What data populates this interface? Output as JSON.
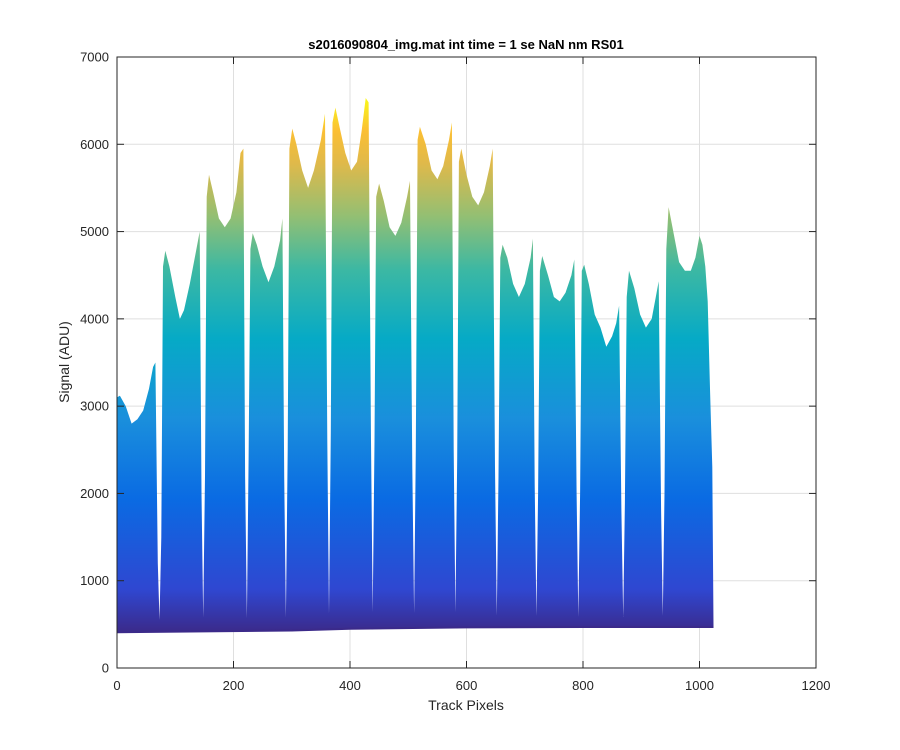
{
  "chart_data": {
    "type": "area",
    "title": "s2016090804_img.mat int time = 1 se  NaN nm RS01",
    "xlabel": "Track Pixels",
    "ylabel": "Signal (ADU)",
    "xlim": [
      0,
      1200
    ],
    "ylim": [
      0,
      7000
    ],
    "xticks": [
      "0",
      "200",
      "400",
      "600",
      "800",
      "1000",
      "1200"
    ],
    "yticks": [
      "0",
      "1000",
      "2000",
      "3000",
      "4000",
      "5000",
      "6000",
      "7000"
    ],
    "grid": true,
    "colormap": "parula",
    "baseline": [
      [
        0,
        410
      ],
      [
        300,
        430
      ],
      [
        400,
        450
      ],
      [
        600,
        465
      ],
      [
        800,
        470
      ],
      [
        1024,
        470
      ]
    ],
    "profile": [
      [
        0,
        3100
      ],
      [
        5,
        3120
      ],
      [
        15,
        3000
      ],
      [
        25,
        2800
      ],
      [
        35,
        2850
      ],
      [
        45,
        2950
      ],
      [
        55,
        3200
      ],
      [
        62,
        3450
      ],
      [
        66,
        3500
      ],
      [
        70,
        1200
      ],
      [
        73,
        550
      ],
      [
        76,
        1500
      ],
      [
        79,
        4600
      ],
      [
        83,
        4780
      ],
      [
        90,
        4600
      ],
      [
        100,
        4250
      ],
      [
        108,
        4000
      ],
      [
        115,
        4100
      ],
      [
        125,
        4400
      ],
      [
        135,
        4750
      ],
      [
        142,
        5000
      ],
      [
        145,
        2000
      ],
      [
        148,
        580
      ],
      [
        151,
        2200
      ],
      [
        154,
        5400
      ],
      [
        158,
        5650
      ],
      [
        165,
        5450
      ],
      [
        175,
        5150
      ],
      [
        185,
        5050
      ],
      [
        195,
        5150
      ],
      [
        205,
        5450
      ],
      [
        212,
        5900
      ],
      [
        217,
        5950
      ],
      [
        220,
        2200
      ],
      [
        223,
        570
      ],
      [
        226,
        2400
      ],
      [
        229,
        4800
      ],
      [
        233,
        4980
      ],
      [
        240,
        4850
      ],
      [
        250,
        4600
      ],
      [
        260,
        4420
      ],
      [
        270,
        4600
      ],
      [
        280,
        4900
      ],
      [
        284,
        5150
      ],
      [
        287,
        2200
      ],
      [
        290,
        580
      ],
      [
        293,
        2500
      ],
      [
        296,
        5950
      ],
      [
        301,
        6180
      ],
      [
        308,
        6000
      ],
      [
        318,
        5700
      ],
      [
        328,
        5500
      ],
      [
        338,
        5700
      ],
      [
        350,
        6050
      ],
      [
        357,
        6350
      ],
      [
        361,
        2600
      ],
      [
        364,
        620
      ],
      [
        367,
        2700
      ],
      [
        370,
        6250
      ],
      [
        375,
        6420
      ],
      [
        382,
        6200
      ],
      [
        392,
        5900
      ],
      [
        402,
        5700
      ],
      [
        412,
        5800
      ],
      [
        420,
        6150
      ],
      [
        427,
        6530
      ],
      [
        432,
        6480
      ],
      [
        436,
        2600
      ],
      [
        439,
        640
      ],
      [
        442,
        2600
      ],
      [
        445,
        5400
      ],
      [
        450,
        5550
      ],
      [
        458,
        5350
      ],
      [
        468,
        5050
      ],
      [
        478,
        4950
      ],
      [
        488,
        5100
      ],
      [
        498,
        5400
      ],
      [
        503,
        5580
      ],
      [
        507,
        2300
      ],
      [
        510,
        630
      ],
      [
        513,
        2500
      ],
      [
        516,
        6050
      ],
      [
        520,
        6200
      ],
      [
        530,
        6000
      ],
      [
        540,
        5700
      ],
      [
        550,
        5600
      ],
      [
        560,
        5750
      ],
      [
        570,
        6050
      ],
      [
        575,
        6250
      ],
      [
        578,
        2500
      ],
      [
        581,
        640
      ],
      [
        584,
        2400
      ],
      [
        587,
        5800
      ],
      [
        591,
        5950
      ],
      [
        600,
        5650
      ],
      [
        610,
        5400
      ],
      [
        620,
        5300
      ],
      [
        630,
        5450
      ],
      [
        640,
        5750
      ],
      [
        645,
        5950
      ],
      [
        649,
        2300
      ],
      [
        652,
        600
      ],
      [
        655,
        2200
      ],
      [
        658,
        4700
      ],
      [
        662,
        4850
      ],
      [
        670,
        4700
      ],
      [
        680,
        4400
      ],
      [
        690,
        4250
      ],
      [
        700,
        4400
      ],
      [
        710,
        4700
      ],
      [
        714,
        4920
      ],
      [
        717,
        2100
      ],
      [
        720,
        600
      ],
      [
        723,
        2000
      ],
      [
        726,
        4550
      ],
      [
        730,
        4720
      ],
      [
        740,
        4500
      ],
      [
        750,
        4250
      ],
      [
        760,
        4200
      ],
      [
        770,
        4300
      ],
      [
        780,
        4500
      ],
      [
        785,
        4680
      ],
      [
        789,
        2000
      ],
      [
        792,
        590
      ],
      [
        795,
        2000
      ],
      [
        798,
        4550
      ],
      [
        802,
        4620
      ],
      [
        810,
        4400
      ],
      [
        820,
        4050
      ],
      [
        830,
        3900
      ],
      [
        840,
        3680
      ],
      [
        850,
        3800
      ],
      [
        857,
        3950
      ],
      [
        862,
        4150
      ],
      [
        866,
        1800
      ],
      [
        869,
        590
      ],
      [
        872,
        1900
      ],
      [
        875,
        4250
      ],
      [
        879,
        4550
      ],
      [
        888,
        4350
      ],
      [
        898,
        4050
      ],
      [
        908,
        3900
      ],
      [
        918,
        4000
      ],
      [
        925,
        4250
      ],
      [
        930,
        4430
      ],
      [
        934,
        1800
      ],
      [
        937,
        600
      ],
      [
        940,
        2000
      ],
      [
        943,
        4800
      ],
      [
        947,
        5280
      ],
      [
        955,
        5000
      ],
      [
        965,
        4650
      ],
      [
        975,
        4550
      ],
      [
        985,
        4550
      ],
      [
        993,
        4700
      ],
      [
        1000,
        4950
      ],
      [
        1005,
        4850
      ],
      [
        1010,
        4600
      ],
      [
        1014,
        4200
      ],
      [
        1018,
        3200
      ],
      [
        1022,
        2300
      ],
      [
        1024,
        480
      ]
    ]
  }
}
